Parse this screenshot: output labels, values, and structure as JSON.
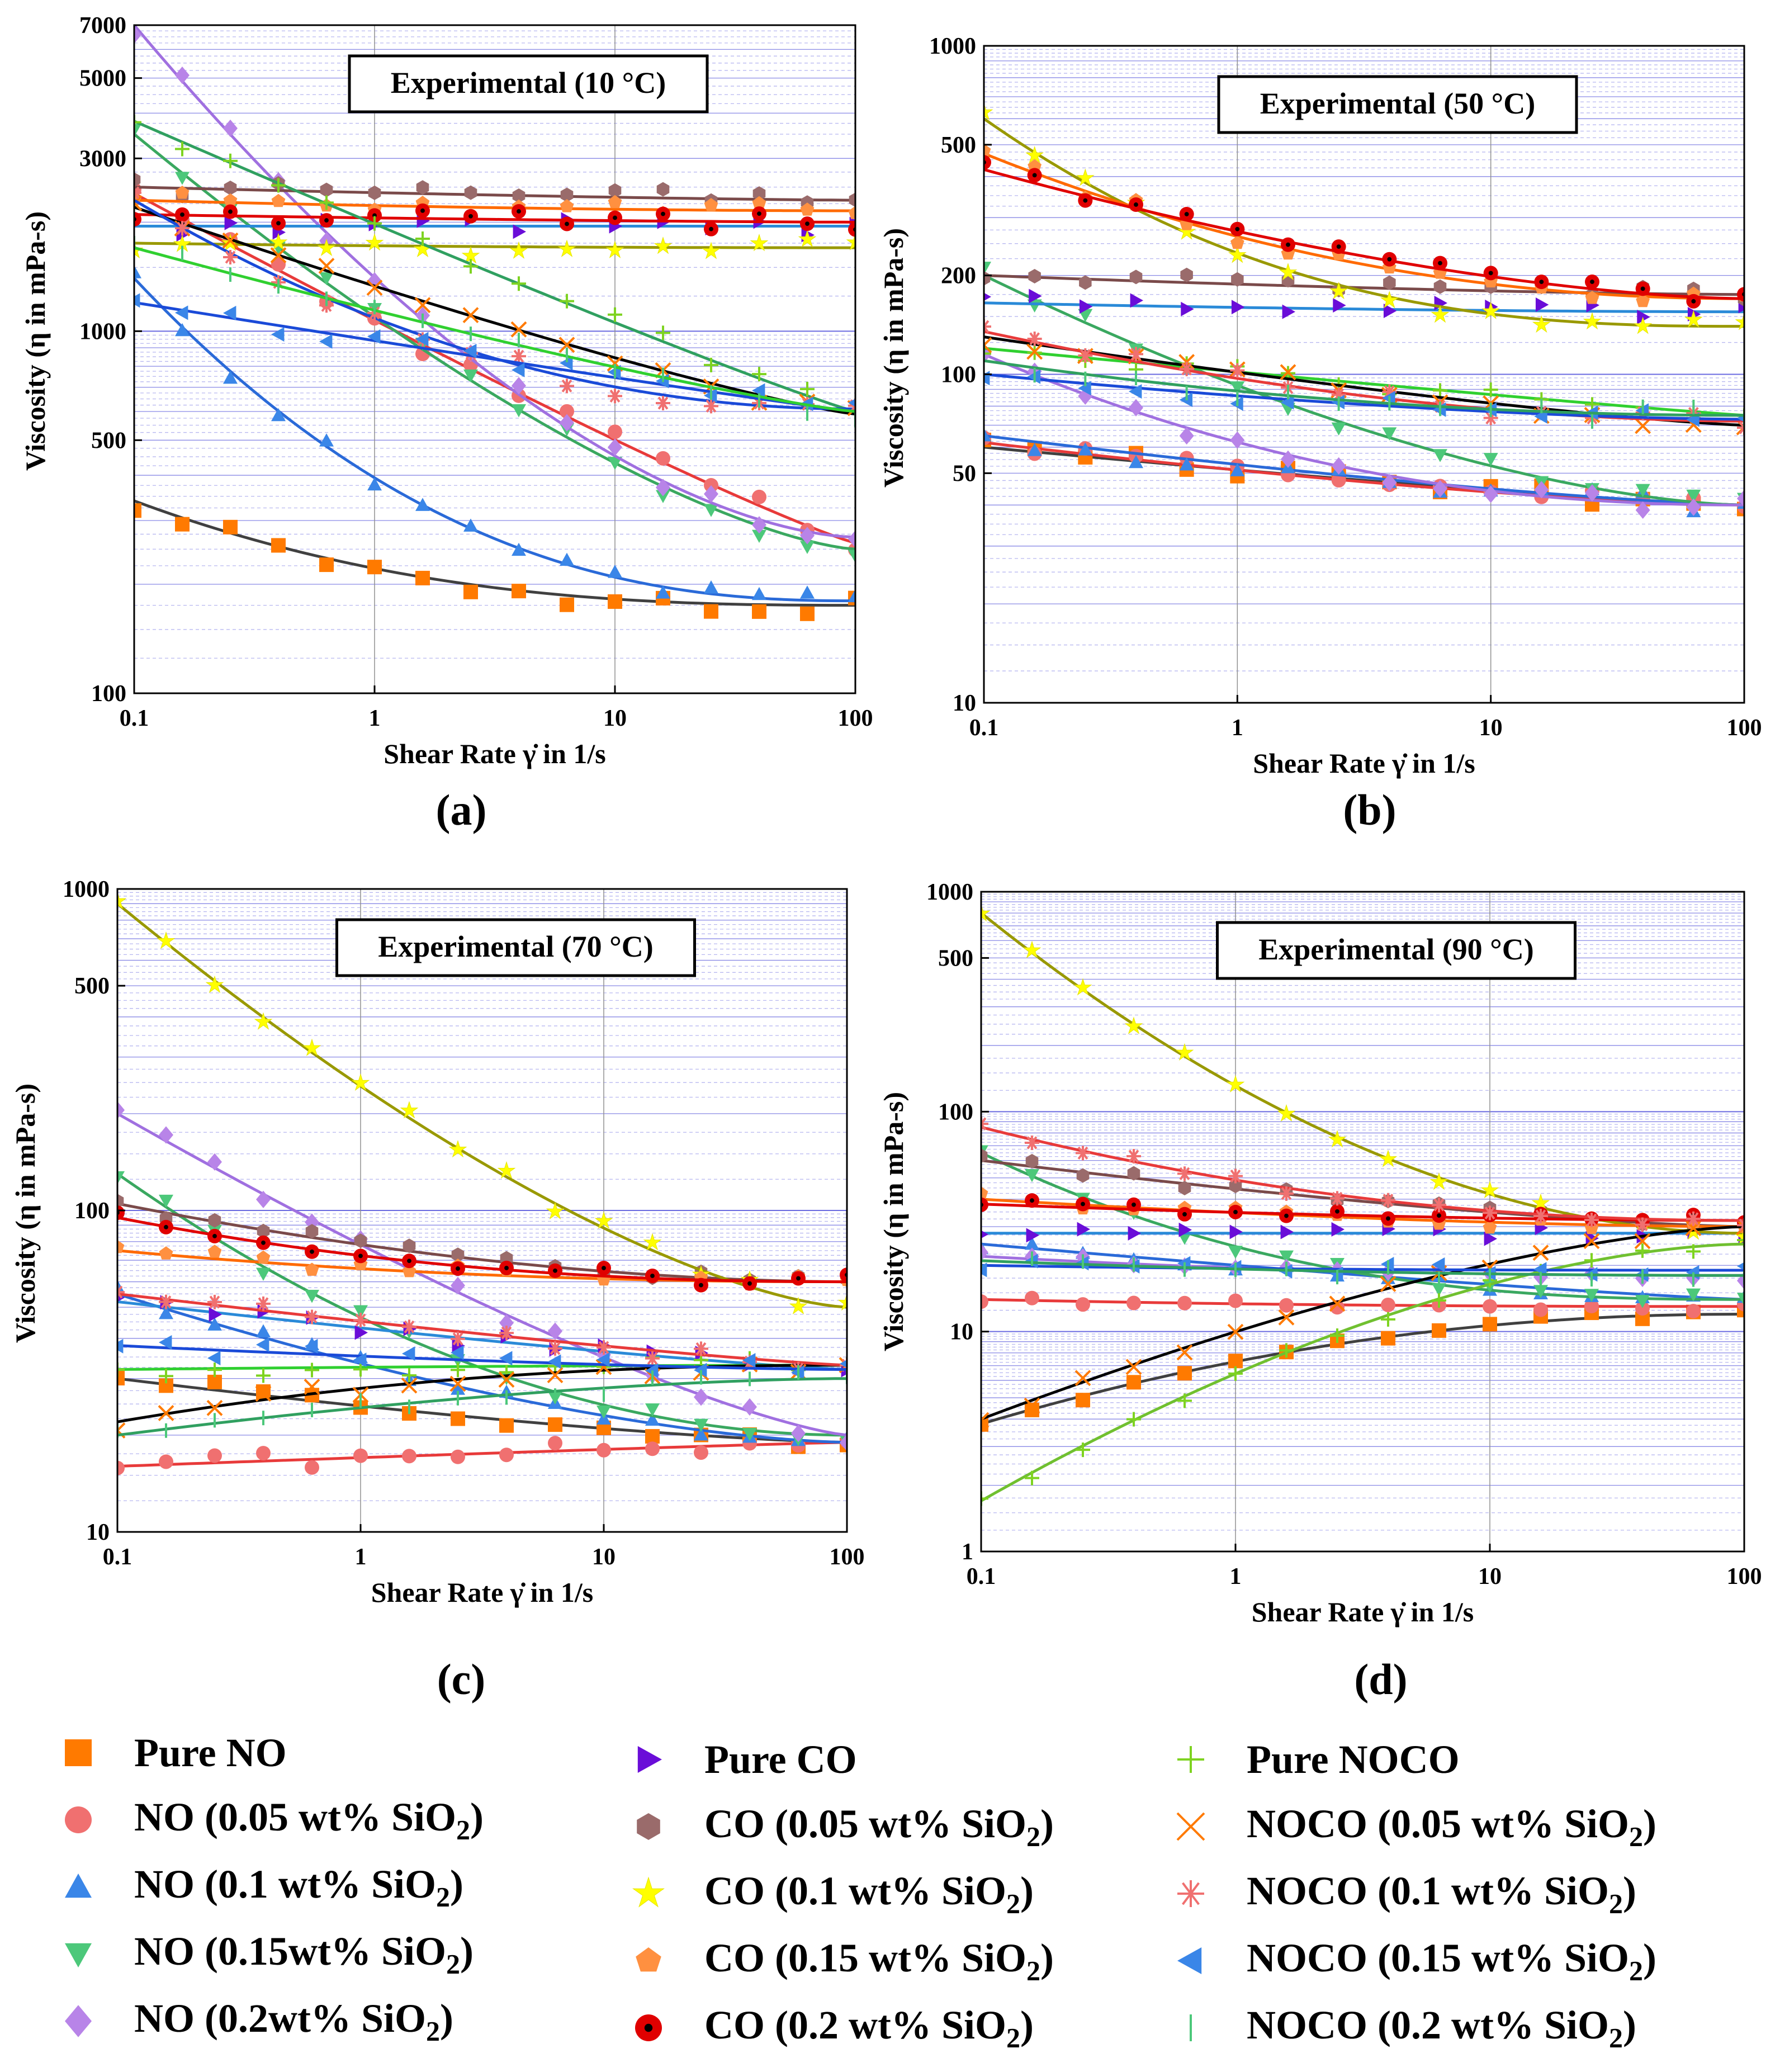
{
  "figure": {
    "panels": [
      {
        "id": "a",
        "title": "Experimental (10 °C)",
        "caption": "(a)",
        "ylabel": "Viscosity (η in mPa-s)",
        "xlabel": "Shear Rate γ̇ in 1/s",
        "xticks": [
          "0.1",
          "1",
          "10",
          "100"
        ],
        "yticks": [
          "100",
          "500",
          "1000",
          "3000",
          "5000",
          "7000"
        ]
      },
      {
        "id": "b",
        "title": "Experimental (50 °C)",
        "caption": "(b)",
        "ylabel": "Viscosity (η in mPa-s)",
        "xlabel": "Shear Rate γ̇ in 1/s",
        "xticks": [
          "0.1",
          "1",
          "10",
          "100"
        ],
        "yticks": [
          "10",
          "50",
          "100",
          "200",
          "500",
          "1000"
        ]
      },
      {
        "id": "c",
        "title": "Experimental (70 °C)",
        "caption": "(c)",
        "ylabel": "Viscosity (η in mPa-s)",
        "xlabel": "Shear Rate γ̇ in 1/s",
        "xticks": [
          "0.1",
          "1",
          "10",
          "100"
        ],
        "yticks": [
          "10",
          "100",
          "500",
          "1000"
        ]
      },
      {
        "id": "d",
        "title": "Experimental (90 °C)",
        "caption": "(d)",
        "ylabel": "Viscosity (η in mPa-s)",
        "xlabel": "Shear Rate γ̇ in 1/s",
        "xticks": [
          "0.1",
          "1",
          "10",
          "100"
        ],
        "yticks": [
          "1",
          "10",
          "100",
          "500",
          "1000"
        ]
      }
    ]
  },
  "legend": {
    "items": [
      {
        "label": "Pure NO",
        "sub": "",
        "suffix": "",
        "marker": "square",
        "color": "#ff7a00"
      },
      {
        "label": "NO (0.05 wt% SiO",
        "sub": "2",
        "suffix": ")",
        "marker": "circle",
        "color": "#f07070"
      },
      {
        "label": "NO (0.1 wt% SiO",
        "sub": "2",
        "suffix": ")",
        "marker": "triangle-up",
        "color": "#3a86e8"
      },
      {
        "label": "NO (0.15wt% SiO",
        "sub": "2",
        "suffix": ")",
        "marker": "triangle-down",
        "color": "#4cc87a"
      },
      {
        "label": "NO (0.2wt% SiO",
        "sub": "2",
        "suffix": ")",
        "marker": "diamond",
        "color": "#b884e8"
      },
      {
        "label": "Pure CO",
        "sub": "",
        "suffix": "",
        "marker": "triangle-right",
        "color": "#6a0dd8"
      },
      {
        "label": "CO (0.05 wt% SiO",
        "sub": "2",
        "suffix": ")",
        "marker": "hexagon",
        "color": "#9a6b6b"
      },
      {
        "label": "CO (0.1 wt% SiO",
        "sub": "2",
        "suffix": ")",
        "marker": "star",
        "color": "#ffff00"
      },
      {
        "label": "CO (0.15 wt% SiO",
        "sub": "2",
        "suffix": ")",
        "marker": "pentagon",
        "color": "#ff9040"
      },
      {
        "label": "CO (0.2 wt% SiO",
        "sub": "2",
        "suffix": ")",
        "marker": "dot-circle",
        "color": "#e00000"
      },
      {
        "label": "Pure NOCO",
        "sub": "",
        "suffix": "",
        "marker": "plus",
        "color": "#7ed321"
      },
      {
        "label": "NOCO (0.05 wt% SiO",
        "sub": "2",
        "suffix": ")",
        "marker": "cross",
        "color": "#ff7a00"
      },
      {
        "label": "NOCO (0.1 wt% SiO",
        "sub": "2",
        "suffix": ")",
        "marker": "asterisk",
        "color": "#f07070"
      },
      {
        "label": "NOCO (0.15 wt% SiO",
        "sub": "2",
        "suffix": ")",
        "marker": "triangle-left",
        "color": "#3a86e8"
      },
      {
        "label": "NOCO (0.2 wt% SiO",
        "sub": "2",
        "suffix": ")",
        "marker": "vline",
        "color": "#4cc87a"
      }
    ]
  },
  "chart_data": [
    {
      "type": "scatter",
      "title": "Experimental (10 °C)",
      "xlabel": "Shear Rate γ̇ in 1/s",
      "ylabel": "Viscosity (η in mPa-s)",
      "xscale": "log",
      "yscale": "log",
      "xlim": [
        0.1,
        100
      ],
      "ylim": [
        100,
        7000
      ],
      "grid": true,
      "series": [
        {
          "name": "Pure NO",
          "marker": "square",
          "color": "#ff7a00",
          "y0": 340,
          "y1": 175,
          "fit": "#404040"
        },
        {
          "name": "NO (0.05 wt% SiO2)",
          "marker": "circle",
          "color": "#f07070",
          "y0": 2400,
          "y1": 260,
          "fit": "#e83a3a"
        },
        {
          "name": "NO (0.1 wt% SiO2)",
          "marker": "triangle-up",
          "color": "#3a86e8",
          "y0": 1400,
          "y1": 180,
          "fit": "#2a6ad8"
        },
        {
          "name": "NO (0.15wt% SiO2)",
          "marker": "triangle-down",
          "color": "#4cc87a",
          "y0": 3500,
          "y1": 250,
          "fit": "#3aa860"
        },
        {
          "name": "NO (0.2wt% SiO2)",
          "marker": "diamond",
          "color": "#b884e8",
          "y0": 7000,
          "y1": 270,
          "fit": "#a070e0"
        },
        {
          "name": "Pure CO",
          "marker": "triangle-right",
          "color": "#6a0dd8",
          "y0": 1950,
          "y1": 1950,
          "fit": "#2a8ad8"
        },
        {
          "name": "CO (0.05 wt% SiO2)",
          "marker": "hexagon",
          "color": "#9a6b6b",
          "y0": 2500,
          "y1": 2300,
          "fit": "#7a4a4a"
        },
        {
          "name": "CO (0.1 wt% SiO2)",
          "marker": "star",
          "color": "#ffff00",
          "y0": 1750,
          "y1": 1700,
          "fit": "#999900"
        },
        {
          "name": "CO (0.15 wt% SiO2)",
          "marker": "pentagon",
          "color": "#ff9040",
          "y0": 2300,
          "y1": 2150,
          "fit": "#ff6a00"
        },
        {
          "name": "CO (0.2 wt% SiO2)",
          "marker": "dot-circle",
          "color": "#e00000",
          "y0": 2100,
          "y1": 2000,
          "fit": "#e00000"
        },
        {
          "name": "Pure NOCO",
          "marker": "plus",
          "color": "#7ed321",
          "y0": 3800,
          "y1": 600,
          "fit": "#30a060"
        },
        {
          "name": "NOCO (0.05 wt% SiO2)",
          "marker": "cross",
          "color": "#ff7a00",
          "y0": 2200,
          "y1": 590,
          "fit": "#000000"
        },
        {
          "name": "NOCO (0.1 wt% SiO2)",
          "marker": "asterisk",
          "color": "#f07070",
          "y0": 2300,
          "y1": 610,
          "fit": "#1a4ad8"
        },
        {
          "name": "NOCO (0.15 wt% SiO2)",
          "marker": "triangle-left",
          "color": "#3a86e8",
          "y0": 1200,
          "y1": 600,
          "fit": "#1a4ad8"
        },
        {
          "name": "NOCO (0.2 wt% SiO2)",
          "marker": "vline",
          "color": "#4cc87a",
          "y0": 1700,
          "y1": 600,
          "fit": "#30d030"
        }
      ]
    },
    {
      "type": "scatter",
      "title": "Experimental (50 °C)",
      "xlabel": "Shear Rate γ̇ in 1/s",
      "ylabel": "Viscosity (η in mPa-s)",
      "xscale": "log",
      "yscale": "log",
      "xlim": [
        0.1,
        100
      ],
      "ylim": [
        10,
        1000
      ],
      "grid": true,
      "series": [
        {
          "name": "Pure NO",
          "marker": "square",
          "color": "#ff7a00",
          "y0": 60,
          "y1": 40,
          "fit": "#404040"
        },
        {
          "name": "NO (0.05 wt% SiO2)",
          "marker": "circle",
          "color": "#f07070",
          "y0": 62,
          "y1": 40,
          "fit": "#e83a3a"
        },
        {
          "name": "NO (0.1 wt% SiO2)",
          "marker": "triangle-up",
          "color": "#3a86e8",
          "y0": 65,
          "y1": 40,
          "fit": "#2a6ad8"
        },
        {
          "name": "NO (0.15wt% SiO2)",
          "marker": "triangle-down",
          "color": "#4cc87a",
          "y0": 200,
          "y1": 40,
          "fit": "#3aa860"
        },
        {
          "name": "NO (0.2wt% SiO2)",
          "marker": "diamond",
          "color": "#b884e8",
          "y0": 115,
          "y1": 40,
          "fit": "#a070e0"
        },
        {
          "name": "Pure CO",
          "marker": "triangle-right",
          "color": "#6a0dd8",
          "y0": 165,
          "y1": 155,
          "fit": "#2a8ad8"
        },
        {
          "name": "CO (0.05 wt% SiO2)",
          "marker": "hexagon",
          "color": "#9a6b6b",
          "y0": 200,
          "y1": 175,
          "fit": "#7a4a4a"
        },
        {
          "name": "CO (0.1 wt% SiO2)",
          "marker": "star",
          "color": "#ffff00",
          "y0": 600,
          "y1": 140,
          "fit": "#999900"
        },
        {
          "name": "CO (0.15 wt% SiO2)",
          "marker": "pentagon",
          "color": "#ff9040",
          "y0": 470,
          "y1": 170,
          "fit": "#ff6a00"
        },
        {
          "name": "CO (0.2 wt% SiO2)",
          "marker": "dot-circle",
          "color": "#e00000",
          "y0": 420,
          "y1": 170,
          "fit": "#e00000"
        },
        {
          "name": "Pure NOCO",
          "marker": "plus",
          "color": "#7ed321",
          "y0": 120,
          "y1": 75,
          "fit": "#30d030"
        },
        {
          "name": "NOCO (0.05 wt% SiO2)",
          "marker": "cross",
          "color": "#ff7a00",
          "y0": 130,
          "y1": 70,
          "fit": "#000000"
        },
        {
          "name": "NOCO (0.1 wt% SiO2)",
          "marker": "asterisk",
          "color": "#f07070",
          "y0": 135,
          "y1": 72,
          "fit": "#e83a3a"
        },
        {
          "name": "NOCO (0.15 wt% SiO2)",
          "marker": "triangle-left",
          "color": "#3a86e8",
          "y0": 100,
          "y1": 73,
          "fit": "#1a4ad8"
        },
        {
          "name": "NOCO (0.2 wt% SiO2)",
          "marker": "vline",
          "color": "#4cc87a",
          "y0": 110,
          "y1": 75,
          "fit": "#30a060"
        }
      ]
    },
    {
      "type": "scatter",
      "title": "Experimental (70 °C)",
      "xlabel": "Shear Rate γ̇ in 1/s",
      "ylabel": "Viscosity (η in mPa-s)",
      "xscale": "log",
      "yscale": "log",
      "xlim": [
        0.1,
        100
      ],
      "ylim": [
        10,
        1000
      ],
      "grid": true,
      "series": [
        {
          "name": "Pure NO",
          "marker": "square",
          "color": "#ff7a00",
          "y0": 30,
          "y1": 19,
          "fit": "#404040"
        },
        {
          "name": "NO (0.05 wt% SiO2)",
          "marker": "circle",
          "color": "#f07070",
          "y0": 16,
          "y1": 19,
          "fit": "#e83a3a"
        },
        {
          "name": "NO (0.1 wt% SiO2)",
          "marker": "triangle-up",
          "color": "#3a86e8",
          "y0": 55,
          "y1": 19,
          "fit": "#2a6ad8"
        },
        {
          "name": "NO (0.15wt% SiO2)",
          "marker": "triangle-down",
          "color": "#4cc87a",
          "y0": 130,
          "y1": 20,
          "fit": "#3aa860"
        },
        {
          "name": "NO (0.2wt% SiO2)",
          "marker": "diamond",
          "color": "#b884e8",
          "y0": 200,
          "y1": 20,
          "fit": "#a070e0"
        },
        {
          "name": "Pure CO",
          "marker": "triangle-right",
          "color": "#6a0dd8",
          "y0": 52,
          "y1": 32,
          "fit": "#2a8ad8"
        },
        {
          "name": "CO (0.05 wt% SiO2)",
          "marker": "hexagon",
          "color": "#9a6b6b",
          "y0": 105,
          "y1": 60,
          "fit": "#7a4a4a"
        },
        {
          "name": "CO (0.1 wt% SiO2)",
          "marker": "star",
          "color": "#ffff00",
          "y0": 900,
          "y1": 50,
          "fit": "#999900"
        },
        {
          "name": "CO (0.15 wt% SiO2)",
          "marker": "pentagon",
          "color": "#ff9040",
          "y0": 75,
          "y1": 60,
          "fit": "#ff6a00"
        },
        {
          "name": "CO (0.2 wt% SiO2)",
          "marker": "dot-circle",
          "color": "#e00000",
          "y0": 95,
          "y1": 60,
          "fit": "#e00000"
        },
        {
          "name": "Pure NOCO",
          "marker": "plus",
          "color": "#7ed321",
          "y0": 32,
          "y1": 33,
          "fit": "#30d030"
        },
        {
          "name": "NOCO (0.05 wt% SiO2)",
          "marker": "cross",
          "color": "#ff7a00",
          "y0": 22,
          "y1": 33,
          "fit": "#000000"
        },
        {
          "name": "NOCO (0.1 wt% SiO2)",
          "marker": "asterisk",
          "color": "#f07070",
          "y0": 55,
          "y1": 33,
          "fit": "#e83a3a"
        },
        {
          "name": "NOCO (0.15 wt% SiO2)",
          "marker": "triangle-left",
          "color": "#3a86e8",
          "y0": 38,
          "y1": 32,
          "fit": "#1a4ad8"
        },
        {
          "name": "NOCO (0.2 wt% SiO2)",
          "marker": "vline",
          "color": "#4cc87a",
          "y0": 20,
          "y1": 30,
          "fit": "#30a060"
        }
      ]
    },
    {
      "type": "scatter",
      "title": "Experimental (90 °C)",
      "xlabel": "Shear Rate γ̇ in 1/s",
      "ylabel": "Viscosity (η in mPa-s)",
      "xscale": "log",
      "yscale": "log",
      "xlim": [
        0.1,
        100
      ],
      "ylim": [
        1,
        1000
      ],
      "grid": true,
      "series": [
        {
          "name": "Pure NO",
          "marker": "square",
          "color": "#ff7a00",
          "y0": 3.8,
          "y1": 12,
          "fit": "#404040"
        },
        {
          "name": "NO (0.05 wt% SiO2)",
          "marker": "circle",
          "color": "#f07070",
          "y0": 14,
          "y1": 13,
          "fit": "#e83a3a"
        },
        {
          "name": "NO (0.1 wt% SiO2)",
          "marker": "triangle-up",
          "color": "#3a86e8",
          "y0": 25,
          "y1": 14,
          "fit": "#2a6ad8"
        },
        {
          "name": "NO (0.15wt% SiO2)",
          "marker": "triangle-down",
          "color": "#4cc87a",
          "y0": 65,
          "y1": 14,
          "fit": "#3aa860"
        },
        {
          "name": "NO (0.2wt% SiO2)",
          "marker": "diamond",
          "color": "#b884e8",
          "y0": 22,
          "y1": 18,
          "fit": "#a070e0"
        },
        {
          "name": "Pure CO",
          "marker": "triangle-right",
          "color": "#6a0dd8",
          "y0": 28,
          "y1": 28,
          "fit": "#2a8ad8"
        },
        {
          "name": "CO (0.05 wt% SiO2)",
          "marker": "hexagon",
          "color": "#9a6b6b",
          "y0": 60,
          "y1": 30,
          "fit": "#7a4a4a"
        },
        {
          "name": "CO (0.1 wt% SiO2)",
          "marker": "star",
          "color": "#ffff00",
          "y0": 800,
          "y1": 28,
          "fit": "#999900"
        },
        {
          "name": "CO (0.15 wt% SiO2)",
          "marker": "pentagon",
          "color": "#ff9040",
          "y0": 40,
          "y1": 30,
          "fit": "#ff6a00"
        },
        {
          "name": "CO (0.2 wt% SiO2)",
          "marker": "dot-circle",
          "color": "#e00000",
          "y0": 38,
          "y1": 32,
          "fit": "#e00000"
        },
        {
          "name": "Pure NOCO",
          "marker": "plus",
          "color": "#7ed321",
          "y0": 1.7,
          "y1": 25,
          "fit": "#70c030"
        },
        {
          "name": "NOCO (0.05 wt% SiO2)",
          "marker": "cross",
          "color": "#ff7a00",
          "y0": 4,
          "y1": 30,
          "fit": "#000000"
        },
        {
          "name": "NOCO (0.1 wt% SiO2)",
          "marker": "asterisk",
          "color": "#f07070",
          "y0": 85,
          "y1": 32,
          "fit": "#e83a3a"
        },
        {
          "name": "NOCO (0.15 wt% SiO2)",
          "marker": "triangle-left",
          "color": "#3a86e8",
          "y0": 20,
          "y1": 19,
          "fit": "#1a4ad8"
        },
        {
          "name": "NOCO (0.2 wt% SiO2)",
          "marker": "vline",
          "color": "#4cc87a",
          "y0": 21,
          "y1": 18,
          "fit": "#30a060"
        }
      ]
    }
  ]
}
